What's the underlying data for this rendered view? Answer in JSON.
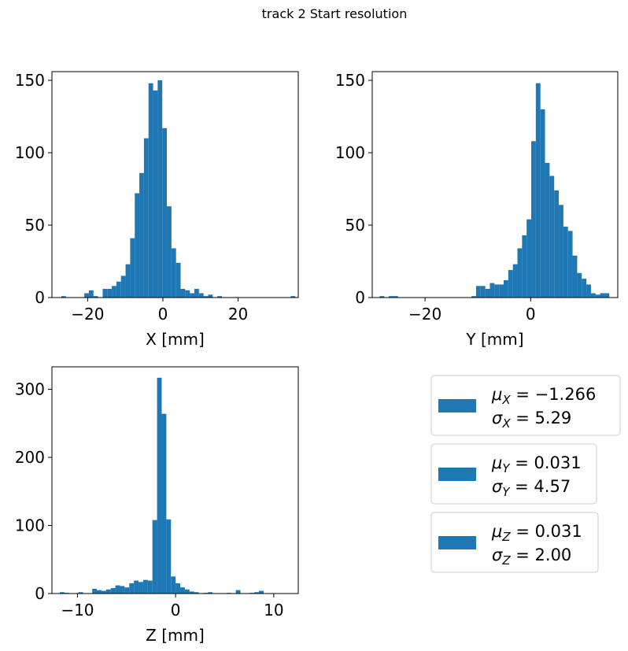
{
  "suptitle": "track 2 Start resolution",
  "colors": {
    "bar": "#1f77b4",
    "frame": "#000000",
    "legend_border": "#cccccc"
  },
  "chart_data": [
    {
      "type": "bar",
      "id": "x",
      "xlabel": "X [mm]",
      "ylabel": "",
      "xlim": [
        -29.5,
        36.0
      ],
      "ylim": [
        0,
        156
      ],
      "xticks": [
        -20,
        0,
        20
      ],
      "xtick_labels": [
        "−20",
        "0",
        "20"
      ],
      "yticks": [
        0,
        50,
        100,
        150
      ],
      "ytick_labels": [
        "0",
        "50",
        "100",
        "150"
      ],
      "bin_start": -27.0,
      "bin_width": 1.22,
      "values": [
        1,
        0,
        0,
        0,
        0,
        3,
        5,
        1,
        0,
        6,
        6,
        8,
        11,
        15,
        23,
        41,
        72,
        86,
        110,
        148,
        143,
        150,
        117,
        63,
        34,
        24,
        6,
        5,
        3,
        6,
        3,
        1,
        2,
        0,
        1,
        0,
        0,
        0,
        0,
        0,
        0,
        0,
        0,
        0,
        0,
        0,
        0,
        0,
        0,
        0,
        1
      ]
    },
    {
      "type": "bar",
      "id": "y",
      "xlabel": "Y [mm]",
      "ylabel": "",
      "xlim": [
        -30.0,
        16.5
      ],
      "ylim": [
        0,
        156
      ],
      "xticks": [
        -20,
        0
      ],
      "xtick_labels": [
        "−20",
        "0"
      ],
      "yticks": [
        0,
        50,
        100,
        150
      ],
      "ytick_labels": [
        "0",
        "50",
        "100",
        "150"
      ],
      "bin_start": -28.6,
      "bin_width": 0.87,
      "values": [
        1,
        0,
        1,
        1,
        0,
        0,
        0,
        0,
        0,
        0,
        0,
        0,
        0,
        0,
        0,
        0,
        0,
        0,
        0,
        0,
        1,
        8,
        8,
        6,
        10,
        9,
        9,
        12,
        19,
        23,
        34,
        43,
        54,
        108,
        148,
        130,
        93,
        84,
        74,
        64,
        49,
        46,
        29,
        17,
        13,
        9,
        3,
        2,
        3,
        3
      ]
    },
    {
      "type": "bar",
      "id": "z",
      "xlabel": "Z [mm]",
      "ylabel": "",
      "xlim": [
        -12.6,
        12.5
      ],
      "ylim": [
        0,
        333
      ],
      "xticks": [
        -10,
        0,
        10
      ],
      "xtick_labels": [
        "−10",
        "0",
        "10"
      ],
      "yticks": [
        0,
        100,
        200,
        300
      ],
      "ytick_labels": [
        "0",
        "100",
        "200",
        "300"
      ],
      "bin_start": -11.8,
      "bin_width": 0.472,
      "values": [
        2,
        1,
        0,
        0,
        2,
        0,
        0,
        7,
        5,
        4,
        6,
        8,
        12,
        11,
        9,
        15,
        19,
        17,
        20,
        19,
        108,
        317,
        264,
        109,
        25,
        15,
        9,
        6,
        3,
        2,
        0,
        1,
        2,
        0,
        0,
        0,
        1,
        0,
        5,
        0,
        0,
        1,
        2,
        4
      ]
    }
  ],
  "legends": [
    {
      "line1": "μX = −1.266",
      "line2": "σX = 5.29"
    },
    {
      "line1": "μY = 0.031",
      "line2": "σY = 4.57"
    },
    {
      "line1": "μZ = 0.031",
      "line2": "σZ = 2.00"
    }
  ]
}
